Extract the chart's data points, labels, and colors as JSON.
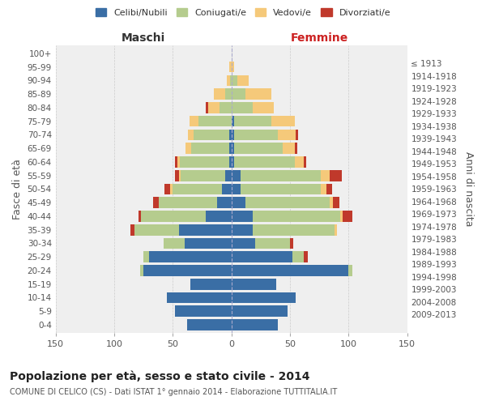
{
  "age_groups": [
    "0-4",
    "5-9",
    "10-14",
    "15-19",
    "20-24",
    "25-29",
    "30-34",
    "35-39",
    "40-44",
    "45-49",
    "50-54",
    "55-59",
    "60-64",
    "65-69",
    "70-74",
    "75-79",
    "80-84",
    "85-89",
    "90-94",
    "95-99",
    "100+"
  ],
  "birth_years": [
    "2009-2013",
    "2004-2008",
    "1999-2003",
    "1994-1998",
    "1989-1993",
    "1984-1988",
    "1979-1983",
    "1974-1978",
    "1969-1973",
    "1964-1968",
    "1959-1963",
    "1954-1958",
    "1949-1953",
    "1944-1948",
    "1939-1943",
    "1934-1938",
    "1929-1933",
    "1924-1928",
    "1919-1923",
    "1914-1918",
    "≤ 1913"
  ],
  "maschi": {
    "celibi": [
      38,
      48,
      55,
      35,
      75,
      70,
      40,
      45,
      22,
      12,
      8,
      5,
      2,
      2,
      2,
      0,
      0,
      0,
      0,
      0,
      0
    ],
    "coniugati": [
      0,
      0,
      0,
      0,
      3,
      5,
      18,
      38,
      55,
      50,
      42,
      38,
      42,
      32,
      30,
      28,
      10,
      5,
      1,
      0,
      0
    ],
    "vedovi": [
      0,
      0,
      0,
      0,
      0,
      0,
      0,
      0,
      0,
      0,
      2,
      2,
      2,
      5,
      5,
      8,
      10,
      10,
      3,
      2,
      0
    ],
    "divorziati": [
      0,
      0,
      0,
      0,
      0,
      0,
      0,
      3,
      2,
      5,
      5,
      3,
      2,
      0,
      0,
      0,
      2,
      0,
      0,
      0,
      0
    ]
  },
  "femmine": {
    "nubili": [
      40,
      48,
      55,
      38,
      100,
      52,
      20,
      18,
      18,
      12,
      8,
      8,
      2,
      2,
      2,
      2,
      0,
      0,
      0,
      0,
      0
    ],
    "coniugate": [
      0,
      0,
      0,
      0,
      3,
      10,
      30,
      70,
      75,
      72,
      68,
      68,
      52,
      42,
      38,
      32,
      18,
      12,
      5,
      0,
      0
    ],
    "vedove": [
      0,
      0,
      0,
      0,
      0,
      0,
      0,
      2,
      2,
      3,
      5,
      8,
      8,
      10,
      15,
      20,
      18,
      22,
      10,
      2,
      0
    ],
    "divorziate": [
      0,
      0,
      0,
      0,
      0,
      3,
      3,
      0,
      8,
      5,
      5,
      10,
      2,
      2,
      2,
      0,
      0,
      0,
      0,
      0,
      0
    ]
  },
  "colors": {
    "celibi": "#3a6ea5",
    "coniugati": "#b5cc8e",
    "vedovi": "#f5c97a",
    "divorziati": "#c0392b"
  },
  "xlim": 150,
  "title": "Popolazione per età, sesso e stato civile - 2014",
  "subtitle": "COMUNE DI CELICO (CS) - Dati ISTAT 1° gennaio 2014 - Elaborazione TUTTITALIA.IT",
  "maschi_label": "Maschi",
  "femmine_label": "Femmine",
  "ylabel_left": "Fasce di età",
  "ylabel_right": "Anni di nascita",
  "legend_labels": [
    "Celibi/Nubili",
    "Coniugati/e",
    "Vedovi/e",
    "Divorziati/e"
  ],
  "background_color": "#ffffff",
  "plot_bg_color": "#efefef",
  "grid_color": "#cccccc",
  "xticks": [
    150,
    100,
    50,
    0,
    50,
    100,
    150
  ]
}
